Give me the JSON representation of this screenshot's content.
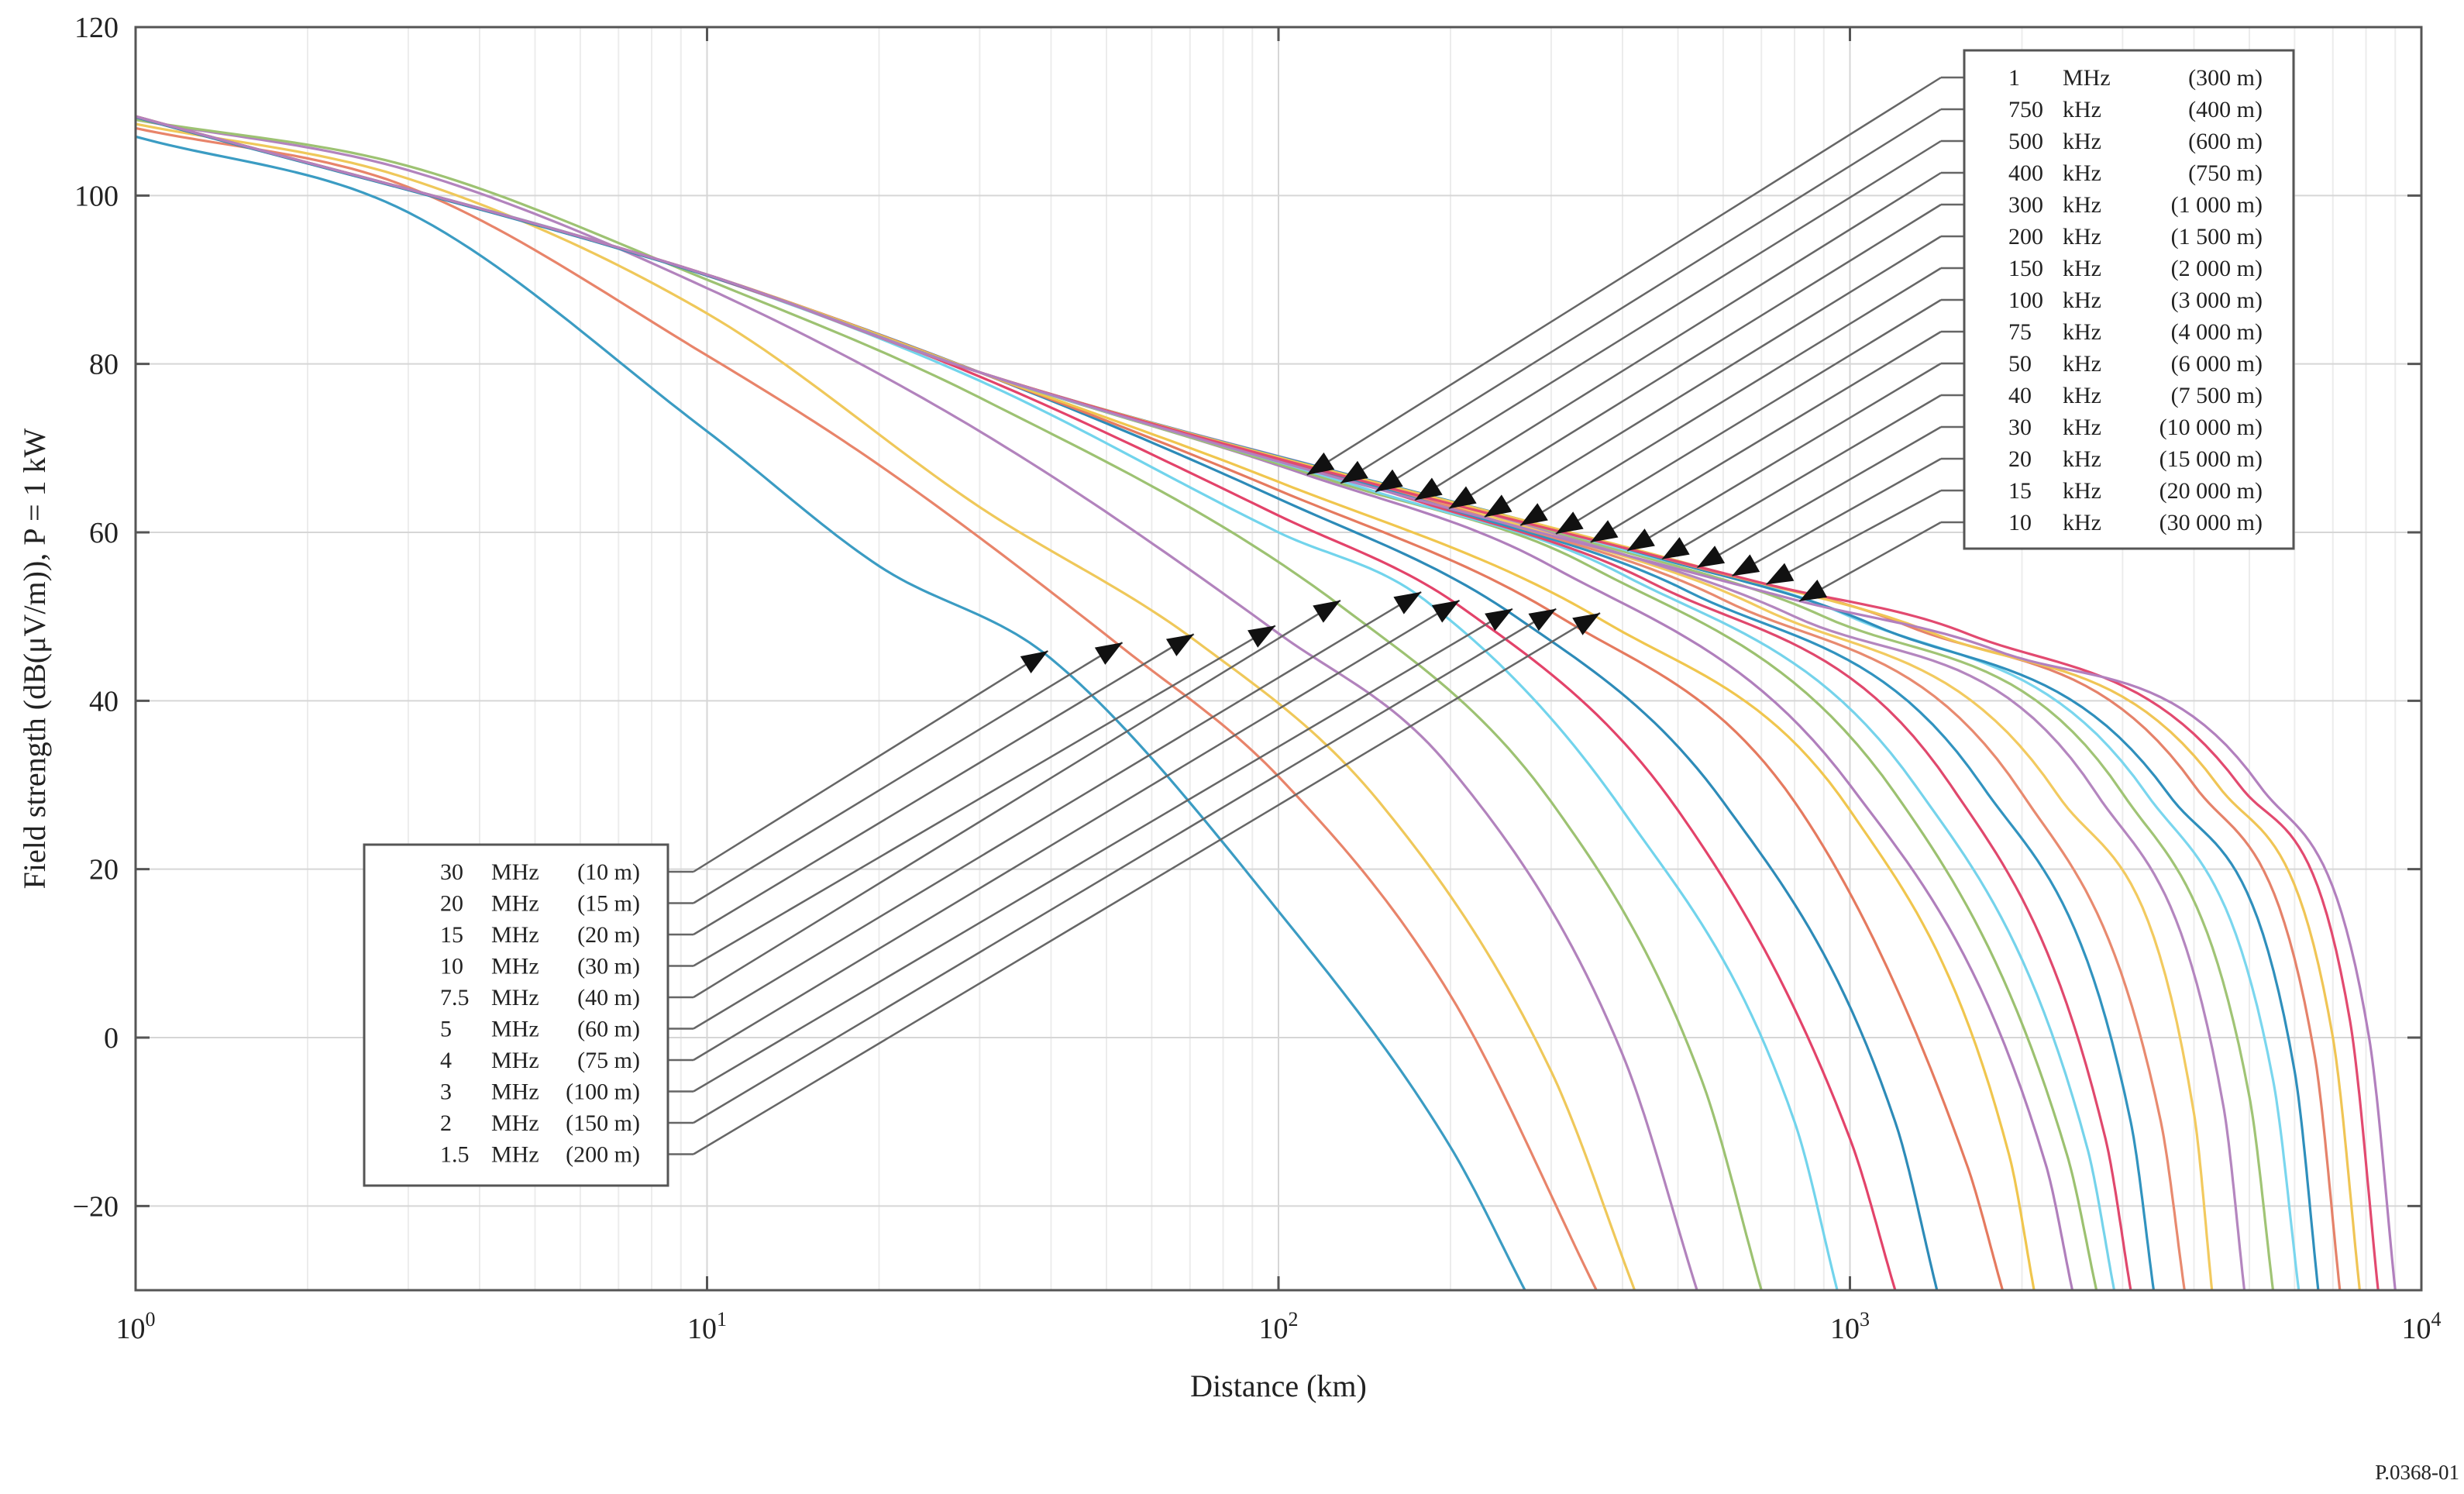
{
  "figure_ref": "P.0368-01",
  "chart_data": {
    "type": "line",
    "title": "",
    "xlabel": "Distance (km)",
    "ylabel": "Field strength (dB(μV/m)), P = 1 kW",
    "xscale": "log",
    "xlim": [
      1,
      10000
    ],
    "ylim": [
      -30,
      120
    ],
    "grid": true,
    "x_ticks": [
      {
        "value": 1,
        "base": "10",
        "exp": "0"
      },
      {
        "value": 10,
        "base": "10",
        "exp": "1"
      },
      {
        "value": 100,
        "base": "10",
        "exp": "2"
      },
      {
        "value": 1000,
        "base": "10",
        "exp": "3"
      },
      {
        "value": 10000,
        "base": "10",
        "exp": "4"
      }
    ],
    "y_ticks": [
      "120",
      "100",
      "80",
      "60",
      "40",
      "20",
      "0",
      "−20"
    ],
    "y_tick_values": [
      120,
      100,
      80,
      60,
      40,
      20,
      0,
      -20
    ],
    "series": [
      {
        "freq": "30",
        "unit": "MHz",
        "wavelength": "(10 m)",
        "color": "#3b9cc3",
        "points": [
          [
            1,
            107
          ],
          [
            3,
            98
          ],
          [
            10,
            72
          ],
          [
            20,
            56
          ],
          [
            40,
            45
          ],
          [
            100,
            15
          ],
          [
            200,
            -13
          ],
          [
            270,
            -30
          ]
        ]
      },
      {
        "freq": "20",
        "unit": "MHz",
        "wavelength": "(15 m)",
        "color": "#e8846a",
        "points": [
          [
            1,
            108
          ],
          [
            3,
            101
          ],
          [
            10,
            81
          ],
          [
            20,
            68
          ],
          [
            54,
            46
          ],
          [
            100,
            31
          ],
          [
            200,
            5
          ],
          [
            360,
            -30
          ]
        ]
      },
      {
        "freq": "15",
        "unit": "MHz",
        "wavelength": "(20 m)",
        "color": "#efc85a",
        "points": [
          [
            1,
            108.5
          ],
          [
            3,
            102
          ],
          [
            10,
            86
          ],
          [
            30,
            63
          ],
          [
            72,
            47
          ],
          [
            150,
            28
          ],
          [
            300,
            -4
          ],
          [
            420,
            -30
          ]
        ]
      },
      {
        "freq": "10",
        "unit": "MHz",
        "wavelength": "(30 m)",
        "color": "#b283bd",
        "points": [
          [
            1,
            109
          ],
          [
            3,
            103
          ],
          [
            10,
            89
          ],
          [
            30,
            72
          ],
          [
            100,
            48
          ],
          [
            200,
            32
          ],
          [
            400,
            -2
          ],
          [
            540,
            -30
          ]
        ]
      },
      {
        "freq": "7.5",
        "unit": "MHz",
        "wavelength": "(40 m)",
        "color": "#9dc272",
        "points": [
          [
            1,
            109
          ],
          [
            3,
            103.5
          ],
          [
            10,
            90
          ],
          [
            30,
            76
          ],
          [
            130,
            51
          ],
          [
            300,
            28
          ],
          [
            550,
            -5
          ],
          [
            700,
            -30
          ]
        ]
      },
      {
        "freq": "5",
        "unit": "MHz",
        "wavelength": "(60 m)",
        "color": "#72d4ec",
        "points": [
          [
            1,
            109.3
          ],
          [
            10,
            90.5
          ],
          [
            30,
            78
          ],
          [
            100,
            60
          ],
          [
            180,
            52
          ],
          [
            400,
            27
          ],
          [
            800,
            -10
          ],
          [
            950,
            -30
          ]
        ]
      },
      {
        "freq": "4",
        "unit": "MHz",
        "wavelength": "(75 m)",
        "color": "#e3436a",
        "points": [
          [
            1,
            109.3
          ],
          [
            10,
            90.5
          ],
          [
            30,
            78.5
          ],
          [
            100,
            62
          ],
          [
            210,
            51
          ],
          [
            500,
            27
          ],
          [
            1000,
            -12
          ],
          [
            1200,
            -30
          ]
        ]
      },
      {
        "freq": "3",
        "unit": "MHz",
        "wavelength": "(100 m)",
        "color": "#2d8bb8",
        "points": [
          [
            1,
            109.3
          ],
          [
            10,
            90.5
          ],
          [
            30,
            79
          ],
          [
            100,
            64
          ],
          [
            260,
            50
          ],
          [
            600,
            28
          ],
          [
            1200,
            -10
          ],
          [
            1420,
            -30
          ]
        ]
      },
      {
        "freq": "2",
        "unit": "MHz",
        "wavelength": "(150 m)",
        "color": "#e57a5f",
        "points": [
          [
            1,
            109.4
          ],
          [
            10,
            90.6
          ],
          [
            30,
            79
          ],
          [
            100,
            65
          ],
          [
            310,
            50
          ],
          [
            800,
            28
          ],
          [
            1600,
            -15
          ],
          [
            1850,
            -30
          ]
        ]
      },
      {
        "freq": "1.5",
        "unit": "MHz",
        "wavelength": "(200 m)",
        "color": "#f0c64e",
        "points": [
          [
            1,
            109.4
          ],
          [
            10,
            90.6
          ],
          [
            30,
            79
          ],
          [
            100,
            66
          ],
          [
            370,
            49.5
          ],
          [
            1000,
            27
          ],
          [
            1900,
            -14
          ],
          [
            2100,
            -30
          ]
        ]
      },
      {
        "freq": "1",
        "unit": "MHz",
        "wavelength": "(300 m)",
        "color": "#b07fbc",
        "points": [
          [
            1,
            109.4
          ],
          [
            10,
            90.6
          ],
          [
            30,
            79
          ],
          [
            110,
            67
          ],
          [
            300,
            56
          ],
          [
            1000,
            30
          ],
          [
            2200,
            -15
          ],
          [
            2450,
            -30
          ]
        ]
      },
      {
        "freq": "750",
        "unit": "kHz",
        "wavelength": "(400 m)",
        "color": "#9cc170",
        "points": [
          [
            1,
            109.4
          ],
          [
            10,
            90.6
          ],
          [
            30,
            79
          ],
          [
            126,
            66
          ],
          [
            350,
            56
          ],
          [
            1200,
            29
          ],
          [
            2400,
            -14
          ],
          [
            2700,
            -30
          ]
        ]
      },
      {
        "freq": "500",
        "unit": "kHz",
        "wavelength": "(600 m)",
        "color": "#75d3eb",
        "points": [
          [
            1,
            109.4
          ],
          [
            10,
            90.6
          ],
          [
            30,
            79
          ],
          [
            145,
            65
          ],
          [
            400,
            55
          ],
          [
            1300,
            30
          ],
          [
            2600,
            -13
          ],
          [
            2900,
            -30
          ]
        ]
      },
      {
        "freq": "400",
        "unit": "kHz",
        "wavelength": "(750 m)",
        "color": "#e0486d",
        "points": [
          [
            1,
            109.4
          ],
          [
            10,
            90.6
          ],
          [
            30,
            79
          ],
          [
            170,
            64
          ],
          [
            450,
            54
          ],
          [
            1500,
            30
          ],
          [
            2800,
            -12
          ],
          [
            3100,
            -30
          ]
        ]
      },
      {
        "freq": "300",
        "unit": "kHz",
        "wavelength": "(1 000 m)",
        "color": "#3193bf",
        "points": [
          [
            1,
            109.4
          ],
          [
            10,
            90.6
          ],
          [
            30,
            79
          ],
          [
            195,
            63
          ],
          [
            520,
            53
          ],
          [
            1700,
            30
          ],
          [
            3100,
            -10
          ],
          [
            3400,
            -30
          ]
        ]
      },
      {
        "freq": "200",
        "unit": "kHz",
        "wavelength": "(1 500 m)",
        "color": "#e88a6f",
        "points": [
          [
            1,
            109.4
          ],
          [
            10,
            90.6
          ],
          [
            30,
            79
          ],
          [
            225,
            62
          ],
          [
            600,
            52
          ],
          [
            2000,
            29
          ],
          [
            3500,
            -10
          ],
          [
            3850,
            -30
          ]
        ]
      },
      {
        "freq": "150",
        "unit": "kHz",
        "wavelength": "(2 000 m)",
        "color": "#f2ca5f",
        "points": [
          [
            1,
            109.4
          ],
          [
            10,
            90.6
          ],
          [
            30,
            79
          ],
          [
            260,
            61
          ],
          [
            700,
            51
          ],
          [
            2300,
            29
          ],
          [
            4000,
            -9
          ],
          [
            4300,
            -30
          ]
        ]
      },
      {
        "freq": "100",
        "unit": "kHz",
        "wavelength": "(3 000 m)",
        "color": "#b486bf",
        "points": [
          [
            1,
            109.4
          ],
          [
            10,
            90.6
          ],
          [
            30,
            79
          ],
          [
            300,
            60
          ],
          [
            800,
            50
          ],
          [
            2700,
            29
          ],
          [
            4500,
            -8
          ],
          [
            4900,
            -30
          ]
        ]
      },
      {
        "freq": "75",
        "unit": "kHz",
        "wavelength": "(4 000 m)",
        "color": "#a0c475",
        "points": [
          [
            1,
            109.4
          ],
          [
            10,
            90.6
          ],
          [
            30,
            79
          ],
          [
            345,
            59
          ],
          [
            900,
            50
          ],
          [
            3000,
            29
          ],
          [
            5000,
            -7
          ],
          [
            5500,
            -30
          ]
        ]
      },
      {
        "freq": "50",
        "unit": "kHz",
        "wavelength": "(6 000 m)",
        "color": "#7ad6ee",
        "points": [
          [
            1,
            109.4
          ],
          [
            10,
            90.6
          ],
          [
            30,
            79
          ],
          [
            400,
            58
          ],
          [
            1000,
            50
          ],
          [
            3300,
            29
          ],
          [
            5500,
            -5
          ],
          [
            6100,
            -30
          ]
        ]
      },
      {
        "freq": "40",
        "unit": "kHz",
        "wavelength": "(7 500 m)",
        "color": "#2f8fbc",
        "points": [
          [
            1,
            109.4
          ],
          [
            10,
            90.6
          ],
          [
            30,
            79
          ],
          [
            460,
            57
          ],
          [
            1100,
            49
          ],
          [
            3600,
            29
          ],
          [
            6000,
            -4
          ],
          [
            6600,
            -30
          ]
        ]
      },
      {
        "freq": "30",
        "unit": "kHz",
        "wavelength": "(10 000 m)",
        "color": "#e5826a",
        "points": [
          [
            1,
            109.4
          ],
          [
            10,
            90.6
          ],
          [
            30,
            79
          ],
          [
            530,
            56
          ],
          [
            1250,
            49
          ],
          [
            4000,
            30
          ],
          [
            6500,
            -2
          ],
          [
            7200,
            -30
          ]
        ]
      },
      {
        "freq": "20",
        "unit": "kHz",
        "wavelength": "(15 000 m)",
        "color": "#f0c555",
        "points": [
          [
            1,
            109.4
          ],
          [
            10,
            90.6
          ],
          [
            30,
            79
          ],
          [
            610,
            55
          ],
          [
            1400,
            48
          ],
          [
            4400,
            30
          ],
          [
            7000,
            0
          ],
          [
            7800,
            -30
          ]
        ]
      },
      {
        "freq": "15",
        "unit": "kHz",
        "wavelength": "(20 000 m)",
        "color": "#e24a70",
        "points": [
          [
            1,
            109.4
          ],
          [
            10,
            90.6
          ],
          [
            30,
            79
          ],
          [
            700,
            54
          ],
          [
            1600,
            48
          ],
          [
            4800,
            30
          ],
          [
            7500,
            2
          ],
          [
            8400,
            -30
          ]
        ]
      },
      {
        "freq": "10",
        "unit": "kHz",
        "wavelength": "(30 000 m)",
        "color": "#b280be",
        "points": [
          [
            1,
            109.4
          ],
          [
            10,
            90.6
          ],
          [
            30,
            79
          ],
          [
            800,
            52
          ],
          [
            1800,
            46
          ],
          [
            5200,
            30
          ],
          [
            8100,
            0
          ],
          [
            9000,
            -30
          ]
        ]
      }
    ],
    "legend_bottom_left": [
      "30 MHz (10 m)",
      "20 MHz (15 m)",
      "15 MHz (20 m)",
      "10 MHz (30 m)",
      "7.5 MHz (40 m)",
      "5 MHz (60 m)",
      "4 MHz (75 m)",
      "3 MHz (100 m)",
      "2 MHz (150 m)",
      "1.5 MHz (200 m)"
    ],
    "legend_top_right": [
      "1 MHz (300 m)",
      "750 kHz (400 m)",
      "500 kHz (600 m)",
      "400 kHz (750 m)",
      "300 kHz (1 000 m)",
      "200 kHz (1 500 m)",
      "150 kHz (2 000 m)",
      "100 kHz (3 000 m)",
      "75 kHz (4 000 m)",
      "50 kHz (6 000 m)",
      "40 kHz (7 500 m)",
      "30 kHz (10 000 m)",
      "20 kHz (15 000 m)",
      "15 kHz (20 000 m)",
      "10 kHz (30 000 m)"
    ]
  }
}
